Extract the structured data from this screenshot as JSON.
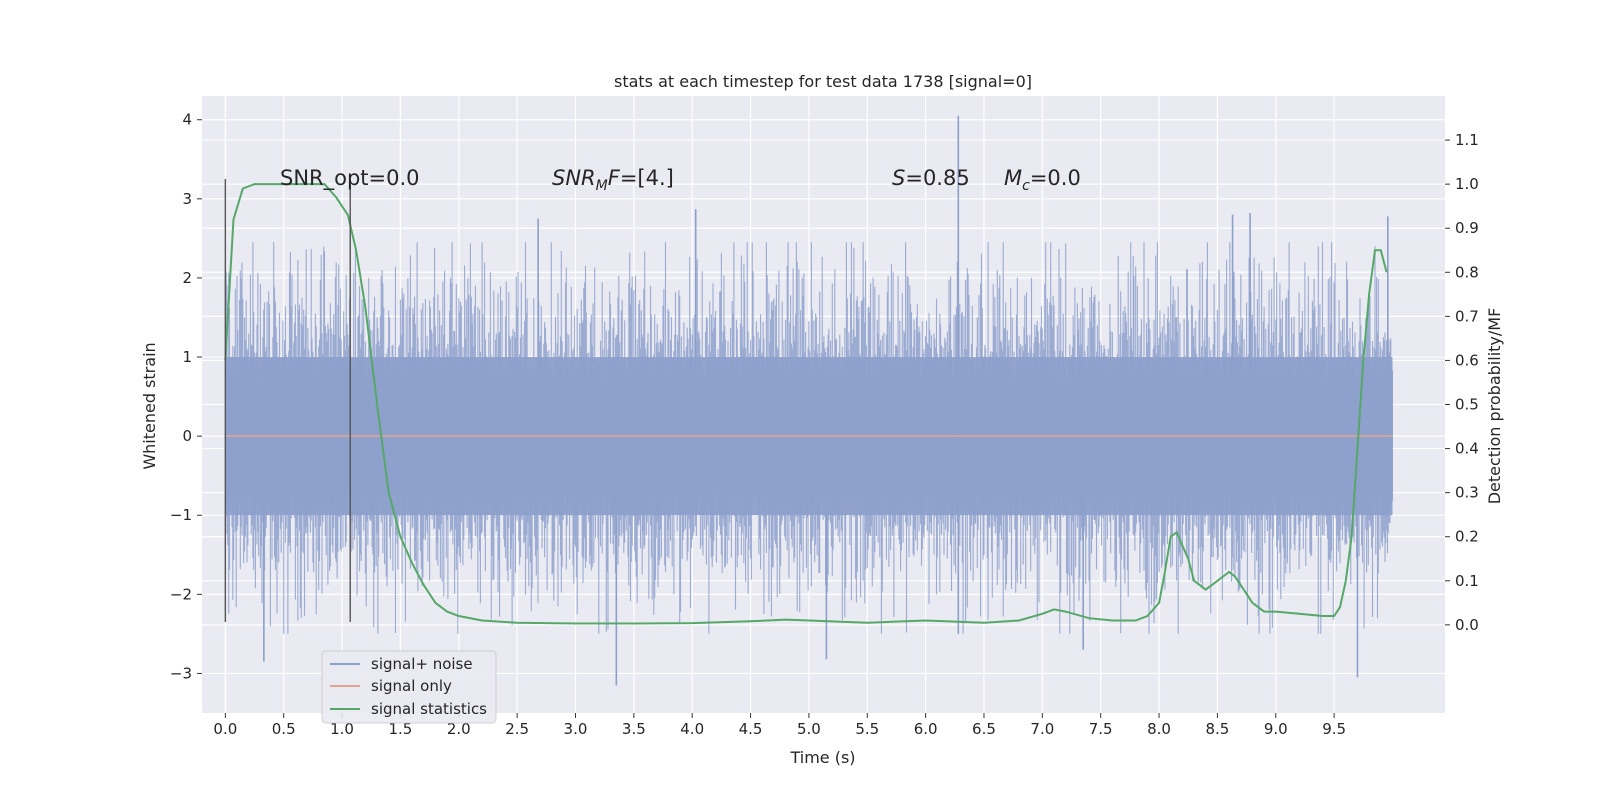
{
  "chart_data": {
    "type": "line",
    "title": "stats at each timestep for test data 1738 [signal=0]",
    "xlabel": "Time (s)",
    "ylabel": "Whitened strain",
    "ylabel_right": "Detection probability/MF",
    "xlim": [
      -0.2,
      10.45
    ],
    "ylim": [
      -3.5,
      4.3
    ],
    "ylim_right": [
      -0.2,
      1.2
    ],
    "x_ticks": [
      0.0,
      0.5,
      1.0,
      1.5,
      2.0,
      2.5,
      3.0,
      3.5,
      4.0,
      4.5,
      5.0,
      5.5,
      6.0,
      6.5,
      7.0,
      7.5,
      8.0,
      8.5,
      9.0,
      9.5
    ],
    "x_tick_labels": [
      "0.0",
      "0.5",
      "1.0",
      "1.5",
      "2.0",
      "2.5",
      "3.0",
      "3.5",
      "4.0",
      "4.5",
      "5.0",
      "5.5",
      "6.0",
      "6.5",
      "7.0",
      "7.5",
      "8.0",
      "8.5",
      "9.0",
      "9.5"
    ],
    "y_ticks": [
      -3,
      -2,
      -1,
      0,
      1,
      2,
      3,
      4
    ],
    "y_tick_labels": [
      "−3",
      "−2",
      "−1",
      "0",
      "1",
      "2",
      "3",
      "4"
    ],
    "y_ticks_right": [
      0.0,
      0.1,
      0.2,
      0.3,
      0.4,
      0.5,
      0.6,
      0.7,
      0.8,
      0.9,
      1.0,
      1.1
    ],
    "y_tick_labels_right": [
      "0.0",
      "0.1",
      "0.2",
      "0.3",
      "0.4",
      "0.5",
      "0.6",
      "0.7",
      "0.8",
      "0.9",
      "1.0",
      "1.1"
    ],
    "grid": true,
    "legend_position": "bottom-left",
    "noise": {
      "x_range": [
        0.0,
        10.0
      ],
      "core_amplitude": 1.0,
      "tall_spikes": [
        [
          2.68,
          2.75
        ],
        [
          4.03,
          2.87
        ],
        [
          6.28,
          4.05
        ],
        [
          8.63,
          2.8
        ],
        [
          8.78,
          2.82
        ],
        [
          9.96,
          2.78
        ],
        [
          6.28,
          -2.5
        ],
        [
          3.35,
          -3.15
        ],
        [
          9.7,
          -3.05
        ],
        [
          5.15,
          -2.82
        ],
        [
          0.33,
          -2.85
        ],
        [
          7.35,
          -2.7
        ]
      ]
    },
    "vertical_markers": [
      {
        "x": 0.0,
        "y_range": [
          -2.35,
          3.25
        ]
      },
      {
        "x": 1.07,
        "y_range": [
          -2.35,
          3.25
        ]
      }
    ],
    "series": [
      {
        "name": "signal+ noise",
        "color": "#8da0cb",
        "axis": "left",
        "kind": "noise"
      },
      {
        "name": "signal only",
        "color": "#e1a58d",
        "axis": "left",
        "x": [
          0.0,
          10.0
        ],
        "y": [
          0.0,
          0.0
        ]
      },
      {
        "name": "signal statistics",
        "color": "#55a868",
        "axis": "right",
        "x": [
          0.0,
          0.07,
          0.15,
          0.25,
          0.35,
          0.5,
          0.7,
          0.85,
          0.95,
          1.05,
          1.12,
          1.2,
          1.3,
          1.4,
          1.5,
          1.6,
          1.7,
          1.8,
          1.9,
          2.0,
          2.2,
          2.5,
          3.0,
          3.5,
          4.0,
          4.5,
          4.8,
          5.0,
          5.5,
          6.0,
          6.5,
          6.8,
          7.0,
          7.1,
          7.2,
          7.4,
          7.6,
          7.8,
          7.9,
          8.0,
          8.05,
          8.1,
          8.15,
          8.25,
          8.3,
          8.35,
          8.4,
          8.45,
          8.5,
          8.6,
          8.65,
          8.7,
          8.8,
          8.9,
          9.0,
          9.2,
          9.4,
          9.5,
          9.55,
          9.6,
          9.65,
          9.7,
          9.75,
          9.8,
          9.85,
          9.9,
          9.95
        ],
        "y": [
          0.6,
          0.92,
          0.99,
          1.0,
          1.0,
          1.0,
          1.0,
          1.0,
          0.97,
          0.93,
          0.85,
          0.72,
          0.5,
          0.3,
          0.2,
          0.14,
          0.09,
          0.05,
          0.03,
          0.02,
          0.01,
          0.005,
          0.003,
          0.003,
          0.004,
          0.008,
          0.012,
          0.01,
          0.005,
          0.01,
          0.005,
          0.01,
          0.025,
          0.035,
          0.03,
          0.015,
          0.01,
          0.01,
          0.02,
          0.05,
          0.12,
          0.2,
          0.21,
          0.15,
          0.1,
          0.09,
          0.08,
          0.09,
          0.1,
          0.12,
          0.11,
          0.09,
          0.05,
          0.03,
          0.03,
          0.025,
          0.02,
          0.02,
          0.04,
          0.1,
          0.2,
          0.4,
          0.6,
          0.75,
          0.85,
          0.85,
          0.8
        ]
      }
    ],
    "annotations": [
      {
        "label": "SNR_opt=0.0"
      },
      {
        "label": "SNR_MF=[4.]"
      },
      {
        "label": "S=0.85"
      },
      {
        "label": "M_c=0.0"
      }
    ]
  }
}
